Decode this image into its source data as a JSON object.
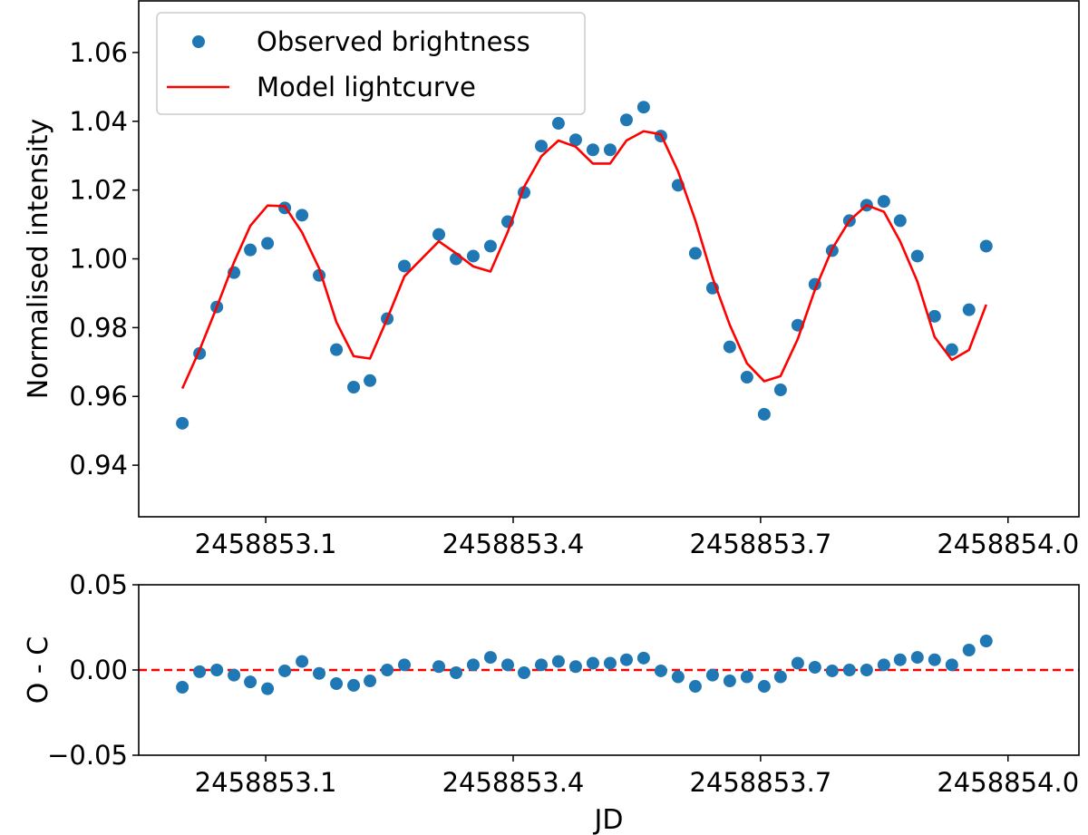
{
  "chart_data": [
    {
      "type": "line",
      "ylabel": "Normalised intensity",
      "xlim": [
        2458852.946,
        2458854.086
      ],
      "ylim": [
        0.925,
        1.075
      ],
      "xticks": [
        2458853.1,
        2458853.4,
        2458853.7,
        {
          "value": 2458854.0,
          "label": "2458854.0"
        }
      ],
      "yticks": [
        0.94,
        0.96,
        0.98,
        {
          "value": 1.0,
          "label": "1.00"
        },
        1.02,
        1.04,
        1.06
      ],
      "legend": "upper left",
      "x": [
        2458852.9989,
        2458853.0198,
        2458853.0407,
        2458853.0615,
        2458853.0813,
        2458853.1022,
        2458853.1231,
        2458853.144,
        2458853.1648,
        2458853.1857,
        2458853.2066,
        2458853.2264,
        2458853.2473,
        2458853.2681,
        2458853.3099,
        2458853.3308,
        2458853.3516,
        2458853.3725,
        2458853.3934,
        2458853.4132,
        2458853.4341,
        2458853.4549,
        2458853.4758,
        2458853.4967,
        2458853.5176,
        2458853.5374,
        2458853.5582,
        2458853.5791,
        2458853.6,
        2458853.6209,
        2458853.6418,
        2458853.6626,
        2458853.6835,
        2458853.7044,
        2458853.7242,
        2458853.7451,
        2458853.7659,
        2458853.7868,
        2458853.8077,
        2458853.8286,
        2458853.8495,
        2458853.8692,
        2458853.8901,
        2458853.911,
        2458853.9319,
        2458853.9527,
        2458853.9736
      ],
      "series": [
        {
          "name": "Observed brightness",
          "color": "#1f77b4",
          "style": "markers",
          "values": [
            0.9522,
            0.9725,
            0.986,
            0.996,
            1.0026,
            1.0045,
            1.0148,
            1.0127,
            0.9952,
            0.9736,
            0.9627,
            0.9646,
            0.9826,
            0.9979,
            1.0071,
            1.0,
            1.0008,
            1.0037,
            1.0108,
            1.0193,
            1.0328,
            1.0394,
            1.0346,
            1.0317,
            1.0317,
            1.0404,
            1.0441,
            1.0357,
            1.0214,
            1.0016,
            0.9915,
            0.9744,
            0.9656,
            0.9548,
            0.9619,
            0.9807,
            0.9926,
            1.0024,
            1.0111,
            1.0156,
            1.0167,
            1.0111,
            1.0008,
            0.9833,
            0.9736,
            0.9852,
            1.0037
          ]
        },
        {
          "name": "Model lightcurve",
          "color": "#ff0000",
          "style": "line",
          "values": [
            0.9623,
            0.9735,
            0.986,
            0.999,
            1.0096,
            1.0155,
            1.0153,
            1.0077,
            0.9972,
            0.9816,
            0.9717,
            0.971,
            0.9826,
            0.9949,
            1.0051,
            1.0016,
            0.9978,
            0.9963,
            1.0078,
            1.0209,
            1.0298,
            1.0344,
            1.0326,
            1.0277,
            1.0277,
            1.0344,
            1.0371,
            1.0362,
            1.0254,
            1.0112,
            0.9945,
            0.9808,
            0.9696,
            0.9644,
            0.9659,
            0.9767,
            0.991,
            1.0029,
            1.0111,
            1.0156,
            1.0137,
            1.0051,
            0.9934,
            0.9773,
            0.9706,
            0.9735,
            0.9867
          ]
        }
      ]
    },
    {
      "type": "scatter",
      "xlabel": "JD",
      "ylabel": "O - C",
      "xlim": [
        2458852.946,
        2458854.086
      ],
      "ylim": [
        -0.05,
        0.05
      ],
      "xticks": [
        2458853.1,
        2458853.4,
        2458853.7,
        {
          "value": 2458854.0,
          "label": "2458854.0"
        }
      ],
      "yticks": [
        {
          "value": -0.05,
          "label": "−0.05"
        },
        {
          "value": 0.0,
          "label": "0.00"
        },
        0.05
      ],
      "reference_line": {
        "y": 0,
        "color": "#ff0000",
        "dashed": true
      },
      "x": [
        2458852.9989,
        2458853.0198,
        2458853.0407,
        2458853.0615,
        2458853.0813,
        2458853.1022,
        2458853.1231,
        2458853.144,
        2458853.1648,
        2458853.1857,
        2458853.2066,
        2458853.2264,
        2458853.2473,
        2458853.2681,
        2458853.3099,
        2458853.3308,
        2458853.3516,
        2458853.3725,
        2458853.3934,
        2458853.4132,
        2458853.4341,
        2458853.4549,
        2458853.4758,
        2458853.4967,
        2458853.5176,
        2458853.5374,
        2458853.5582,
        2458853.5791,
        2458853.6,
        2458853.6209,
        2458853.6418,
        2458853.6626,
        2458853.6835,
        2458853.7044,
        2458853.7242,
        2458853.7451,
        2458853.7659,
        2458853.7868,
        2458853.8077,
        2458853.8286,
        2458853.8495,
        2458853.8692,
        2458853.8901,
        2458853.911,
        2458853.9319,
        2458853.9527,
        2458853.9736
      ],
      "color": "#1f77b4",
      "values": [
        -0.0101,
        -0.001,
        0.0,
        -0.003,
        -0.007,
        -0.011,
        -0.0005,
        0.005,
        -0.002,
        -0.008,
        -0.009,
        -0.0064,
        0.0,
        0.003,
        0.002,
        -0.0016,
        0.003,
        0.0074,
        0.003,
        -0.0016,
        0.003,
        0.005,
        0.002,
        0.004,
        0.004,
        0.006,
        0.007,
        -0.0005,
        -0.004,
        -0.0096,
        -0.003,
        -0.0064,
        -0.004,
        -0.0096,
        -0.004,
        0.004,
        0.0016,
        -0.0005,
        0.0,
        0.0,
        0.003,
        0.006,
        0.0074,
        0.006,
        0.003,
        0.0117,
        0.017
      ]
    }
  ]
}
